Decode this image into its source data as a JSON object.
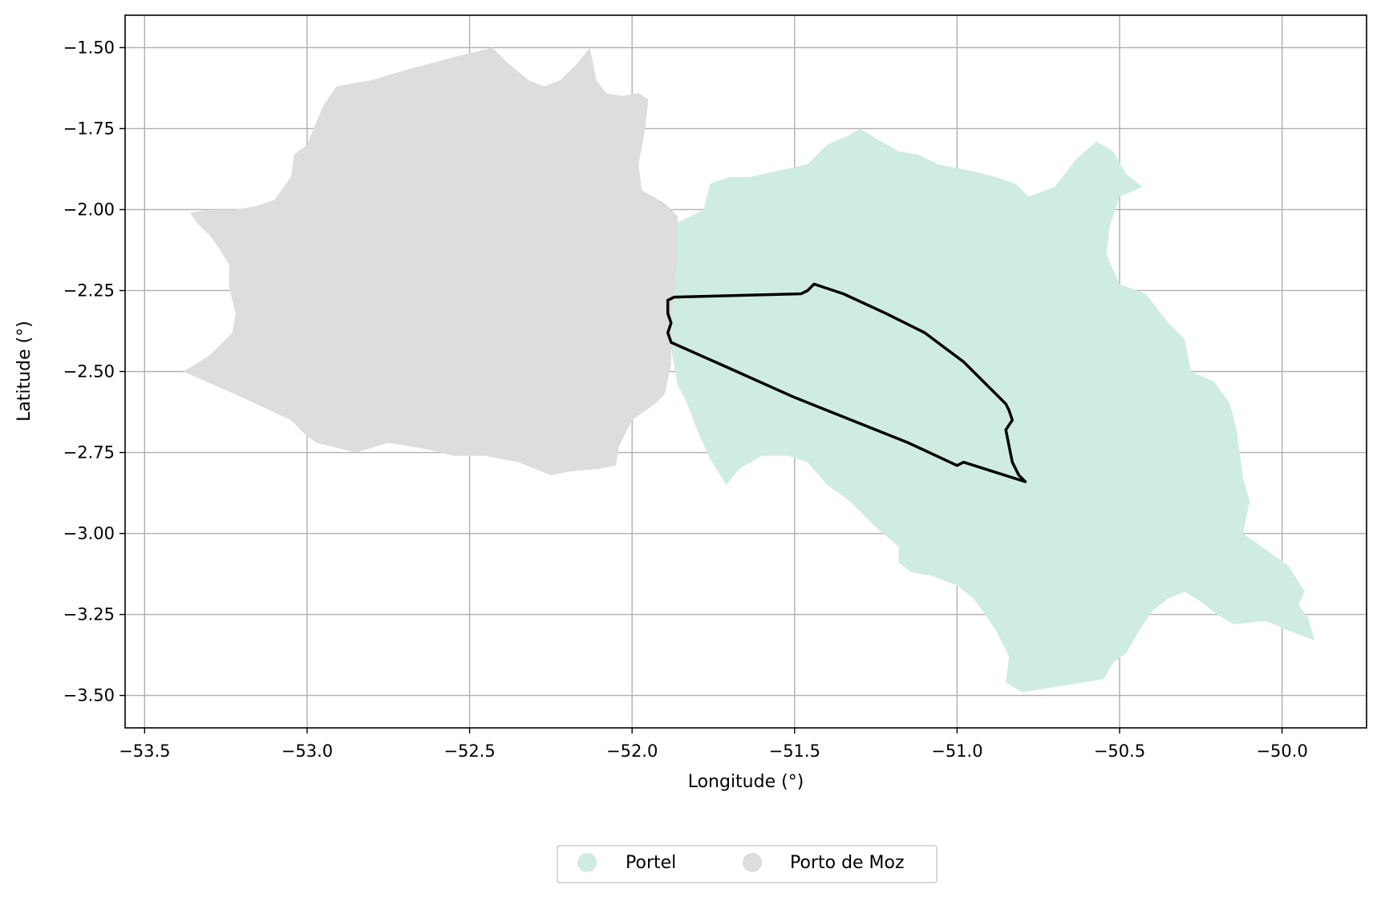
{
  "chart_data": {
    "type": "map",
    "xlabel": "Longitude (°)",
    "ylabel": "Latitude (°)",
    "xlim": [
      -53.56,
      -49.74
    ],
    "ylim": [
      -3.6,
      -1.4
    ],
    "grid": true,
    "x_ticks": [
      -53.5,
      -53.0,
      -52.5,
      -52.0,
      -51.5,
      -51.0,
      -50.5,
      -50.0
    ],
    "x_tick_labels": [
      "−53.5",
      "−53.0",
      "−52.5",
      "−52.0",
      "−51.5",
      "−51.0",
      "−50.5",
      "−50.0"
    ],
    "y_ticks": [
      -1.5,
      -1.75,
      -2.0,
      -2.25,
      -2.5,
      -2.75,
      -3.0,
      -3.25,
      -3.5
    ],
    "y_tick_labels": [
      "−1.50",
      "−1.75",
      "−2.00",
      "−2.25",
      "−2.50",
      "−2.75",
      "−3.00",
      "−3.25",
      "−3.50"
    ],
    "legend_position": "bottom-center",
    "regions": [
      {
        "name": "Portel",
        "color": "#cfece0",
        "polygon": [
          [
            -51.93,
            -2.2
          ],
          [
            -51.9,
            -2.06
          ],
          [
            -51.82,
            -2.02
          ],
          [
            -51.78,
            -2.0
          ],
          [
            -51.76,
            -1.92
          ],
          [
            -51.7,
            -1.9
          ],
          [
            -51.64,
            -1.9
          ],
          [
            -51.55,
            -1.88
          ],
          [
            -51.46,
            -1.86
          ],
          [
            -51.4,
            -1.8
          ],
          [
            -51.33,
            -1.77
          ],
          [
            -51.3,
            -1.75
          ],
          [
            -51.25,
            -1.78
          ],
          [
            -51.18,
            -1.82
          ],
          [
            -51.12,
            -1.83
          ],
          [
            -51.06,
            -1.86
          ],
          [
            -50.96,
            -1.88
          ],
          [
            -50.88,
            -1.9
          ],
          [
            -50.82,
            -1.92
          ],
          [
            -50.78,
            -1.96
          ],
          [
            -50.7,
            -1.93
          ],
          [
            -50.63,
            -1.84
          ],
          [
            -50.57,
            -1.79
          ],
          [
            -50.52,
            -1.82
          ],
          [
            -50.48,
            -1.89
          ],
          [
            -50.43,
            -1.93
          ],
          [
            -50.5,
            -1.96
          ],
          [
            -50.53,
            -2.05
          ],
          [
            -50.54,
            -2.14
          ],
          [
            -50.5,
            -2.23
          ],
          [
            -50.42,
            -2.26
          ],
          [
            -50.35,
            -2.35
          ],
          [
            -50.3,
            -2.4
          ],
          [
            -50.28,
            -2.5
          ],
          [
            -50.21,
            -2.53
          ],
          [
            -50.16,
            -2.6
          ],
          [
            -50.14,
            -2.68
          ],
          [
            -50.12,
            -2.83
          ],
          [
            -50.1,
            -2.9
          ],
          [
            -50.12,
            -3.0
          ],
          [
            -50.05,
            -3.05
          ],
          [
            -49.98,
            -3.1
          ],
          [
            -49.93,
            -3.18
          ],
          [
            -49.95,
            -3.22
          ],
          [
            -49.92,
            -3.26
          ],
          [
            -49.9,
            -3.33
          ],
          [
            -49.98,
            -3.3
          ],
          [
            -50.05,
            -3.27
          ],
          [
            -50.15,
            -3.28
          ],
          [
            -50.2,
            -3.25
          ],
          [
            -50.25,
            -3.21
          ],
          [
            -50.3,
            -3.18
          ],
          [
            -50.35,
            -3.2
          ],
          [
            -50.4,
            -3.24
          ],
          [
            -50.44,
            -3.3
          ],
          [
            -50.48,
            -3.37
          ],
          [
            -50.52,
            -3.4
          ],
          [
            -50.55,
            -3.45
          ],
          [
            -50.8,
            -3.49
          ],
          [
            -50.85,
            -3.46
          ],
          [
            -50.84,
            -3.38
          ],
          [
            -50.88,
            -3.3
          ],
          [
            -50.92,
            -3.24
          ],
          [
            -50.95,
            -3.2
          ],
          [
            -51.0,
            -3.16
          ],
          [
            -51.08,
            -3.13
          ],
          [
            -51.14,
            -3.12
          ],
          [
            -51.18,
            -3.09
          ],
          [
            -51.18,
            -3.04
          ],
          [
            -51.25,
            -2.98
          ],
          [
            -51.33,
            -2.9
          ],
          [
            -51.4,
            -2.85
          ],
          [
            -51.46,
            -2.78
          ],
          [
            -51.52,
            -2.76
          ],
          [
            -51.6,
            -2.76
          ],
          [
            -51.67,
            -2.8
          ],
          [
            -51.71,
            -2.85
          ],
          [
            -51.76,
            -2.77
          ],
          [
            -51.8,
            -2.68
          ],
          [
            -51.83,
            -2.6
          ],
          [
            -51.86,
            -2.54
          ],
          [
            -51.88,
            -2.43
          ],
          [
            -51.9,
            -2.35
          ],
          [
            -51.93,
            -2.28
          ]
        ]
      },
      {
        "name": "Porto de Moz",
        "color": "#dddddd",
        "polygon": [
          [
            -53.38,
            -2.5
          ],
          [
            -53.3,
            -2.45
          ],
          [
            -53.27,
            -2.42
          ],
          [
            -53.23,
            -2.38
          ],
          [
            -53.22,
            -2.32
          ],
          [
            -53.24,
            -2.24
          ],
          [
            -53.24,
            -2.17
          ],
          [
            -53.27,
            -2.12
          ],
          [
            -53.3,
            -2.08
          ],
          [
            -53.34,
            -2.04
          ],
          [
            -53.36,
            -2.01
          ],
          [
            -53.3,
            -2.0
          ],
          [
            -53.22,
            -2.0
          ],
          [
            -53.16,
            -1.99
          ],
          [
            -53.1,
            -1.97
          ],
          [
            -53.05,
            -1.9
          ],
          [
            -53.04,
            -1.83
          ],
          [
            -53.0,
            -1.8
          ],
          [
            -52.98,
            -1.75
          ],
          [
            -52.95,
            -1.68
          ],
          [
            -52.91,
            -1.62
          ],
          [
            -52.8,
            -1.6
          ],
          [
            -52.7,
            -1.57
          ],
          [
            -52.55,
            -1.53
          ],
          [
            -52.43,
            -1.5
          ],
          [
            -52.38,
            -1.55
          ],
          [
            -52.32,
            -1.6
          ],
          [
            -52.27,
            -1.62
          ],
          [
            -52.22,
            -1.6
          ],
          [
            -52.17,
            -1.55
          ],
          [
            -52.13,
            -1.5
          ],
          [
            -52.11,
            -1.6
          ],
          [
            -52.08,
            -1.64
          ],
          [
            -52.03,
            -1.65
          ],
          [
            -51.98,
            -1.64
          ],
          [
            -51.95,
            -1.66
          ],
          [
            -51.96,
            -1.75
          ],
          [
            -51.98,
            -1.86
          ],
          [
            -51.97,
            -1.94
          ],
          [
            -51.9,
            -1.98
          ],
          [
            -51.86,
            -2.02
          ],
          [
            -51.86,
            -2.13
          ],
          [
            -51.87,
            -2.26
          ],
          [
            -51.88,
            -2.35
          ],
          [
            -51.88,
            -2.48
          ],
          [
            -51.9,
            -2.57
          ],
          [
            -51.93,
            -2.6
          ],
          [
            -52.0,
            -2.65
          ],
          [
            -52.04,
            -2.73
          ],
          [
            -52.05,
            -2.79
          ],
          [
            -52.1,
            -2.8
          ],
          [
            -52.2,
            -2.81
          ],
          [
            -52.25,
            -2.82
          ],
          [
            -52.35,
            -2.78
          ],
          [
            -52.45,
            -2.76
          ],
          [
            -52.55,
            -2.76
          ],
          [
            -52.63,
            -2.74
          ],
          [
            -52.75,
            -2.72
          ],
          [
            -52.85,
            -2.75
          ],
          [
            -52.97,
            -2.72
          ],
          [
            -53.0,
            -2.7
          ],
          [
            -53.05,
            -2.65
          ],
          [
            -53.2,
            -2.58
          ]
        ]
      }
    ],
    "outline": {
      "color": "#000000",
      "polygon": [
        [
          -51.88,
          -2.41
        ],
        [
          -51.89,
          -2.38
        ],
        [
          -51.88,
          -2.35
        ],
        [
          -51.89,
          -2.32
        ],
        [
          -51.89,
          -2.28
        ],
        [
          -51.87,
          -2.27
        ],
        [
          -51.48,
          -2.26
        ],
        [
          -51.46,
          -2.25
        ],
        [
          -51.44,
          -2.23
        ],
        [
          -51.35,
          -2.26
        ],
        [
          -51.22,
          -2.32
        ],
        [
          -51.1,
          -2.38
        ],
        [
          -50.98,
          -2.47
        ],
        [
          -50.85,
          -2.6
        ],
        [
          -50.84,
          -2.62
        ],
        [
          -50.83,
          -2.65
        ],
        [
          -50.85,
          -2.68
        ],
        [
          -50.84,
          -2.73
        ],
        [
          -50.83,
          -2.78
        ],
        [
          -50.81,
          -2.82
        ],
        [
          -50.79,
          -2.84
        ],
        [
          -50.98,
          -2.78
        ],
        [
          -51.0,
          -2.79
        ],
        [
          -51.15,
          -2.72
        ],
        [
          -51.5,
          -2.58
        ],
        [
          -51.7,
          -2.49
        ],
        [
          -51.88,
          -2.41
        ]
      ]
    },
    "legend": [
      {
        "label": "Portel",
        "color": "#cfece0"
      },
      {
        "label": "Porto de Moz",
        "color": "#dddddd"
      }
    ]
  }
}
